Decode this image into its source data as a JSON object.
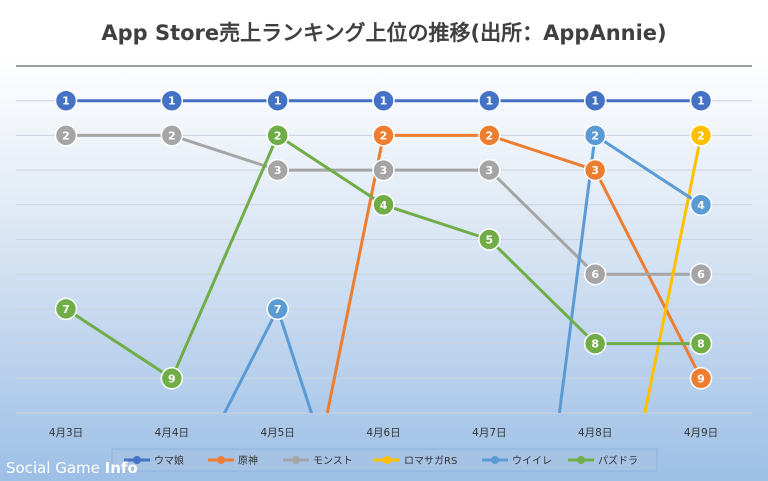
{
  "watermark": {
    "text": "Social Game ",
    "text_strong": "Info"
  },
  "chart_data": {
    "type": "line",
    "title": "App Store売上ランキング上位の推移(出所：AppAnnie)",
    "xlabel": "",
    "ylabel": "",
    "categories": [
      "4月3日",
      "4月4日",
      "4月5日",
      "4月6日",
      "4月7日",
      "4月8日",
      "4月9日"
    ],
    "y_reversed": true,
    "ylim": [
      1,
      10
    ],
    "grid": true,
    "legend_position": "bottom",
    "background": "#a8c6e8",
    "series": [
      {
        "name": "ウマ娘",
        "color": "#4472c4",
        "values": [
          1,
          1,
          1,
          1,
          1,
          1,
          1
        ]
      },
      {
        "name": "原神",
        "color": "#ed7d31",
        "values": [
          null,
          null,
          null,
          2,
          2,
          3,
          9
        ]
      },
      {
        "name": "モンスト",
        "color": "#a5a5a5",
        "values": [
          2,
          2,
          3,
          3,
          3,
          6,
          6
        ]
      },
      {
        "name": "ロマサガRS",
        "color": "#ffc000",
        "values": [
          null,
          null,
          null,
          null,
          null,
          null,
          2
        ]
      },
      {
        "name": "ウイイレ",
        "color": "#5b9bd5",
        "values": [
          null,
          null,
          7,
          null,
          null,
          2,
          4
        ]
      },
      {
        "name": "パズドラ",
        "color": "#70ad47",
        "values": [
          7,
          9,
          2,
          4,
          5,
          8,
          8
        ]
      }
    ]
  }
}
